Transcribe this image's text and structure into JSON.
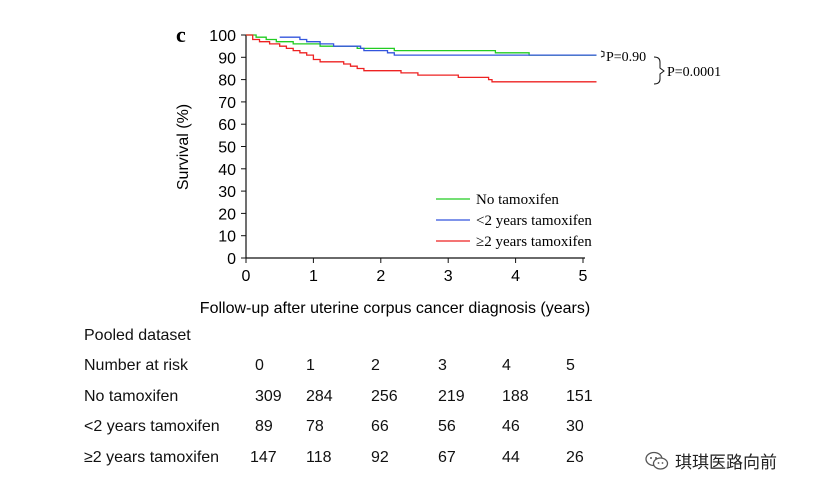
{
  "chart_data": {
    "type": "line",
    "panel_label": "c",
    "title": "",
    "xlabel": "Follow-up after uterine corpus cancer diagnosis (years)",
    "ylabel": "Survival (%)",
    "xlim": [
      0,
      5
    ],
    "ylim": [
      0,
      100
    ],
    "x_ticks": [
      "0",
      "1",
      "2",
      "3",
      "4",
      "5"
    ],
    "y_ticks": [
      "0",
      "10",
      "20",
      "30",
      "40",
      "50",
      "60",
      "70",
      "80",
      "90",
      "100"
    ],
    "legend_position": "lower-right",
    "series": [
      {
        "name": "No tamoxifen",
        "color": "#22cc22",
        "points": [
          [
            0,
            100
          ],
          [
            0.15,
            100
          ],
          [
            0.15,
            99
          ],
          [
            0.3,
            99
          ],
          [
            0.3,
            98
          ],
          [
            0.45,
            98
          ],
          [
            0.45,
            97
          ],
          [
            0.7,
            97
          ],
          [
            0.7,
            96
          ],
          [
            1.1,
            96
          ],
          [
            1.1,
            95
          ],
          [
            1.65,
            95
          ],
          [
            1.65,
            94
          ],
          [
            2.2,
            94
          ],
          [
            2.2,
            93
          ],
          [
            3.7,
            93
          ],
          [
            3.7,
            92
          ],
          [
            4.2,
            92
          ],
          [
            4.2,
            91
          ],
          [
            5.2,
            91
          ]
        ]
      },
      {
        "name": "<2 years tamoxifen",
        "color": "#3355dd",
        "points": [
          [
            0.5,
            99
          ],
          [
            0.8,
            99
          ],
          [
            0.8,
            98
          ],
          [
            0.9,
            98
          ],
          [
            0.9,
            97
          ],
          [
            1.1,
            97
          ],
          [
            1.1,
            96
          ],
          [
            1.3,
            96
          ],
          [
            1.3,
            95
          ],
          [
            1.7,
            95
          ],
          [
            1.7,
            94
          ],
          [
            1.75,
            94
          ],
          [
            1.75,
            93
          ],
          [
            2.1,
            93
          ],
          [
            2.1,
            92
          ],
          [
            2.2,
            92
          ],
          [
            2.2,
            91
          ],
          [
            5.2,
            91
          ]
        ]
      },
      {
        "name": "≥2 years tamoxifen",
        "color": "#ee2222",
        "points": [
          [
            0,
            100
          ],
          [
            0.1,
            100
          ],
          [
            0.1,
            98
          ],
          [
            0.2,
            98
          ],
          [
            0.2,
            97
          ],
          [
            0.35,
            97
          ],
          [
            0.35,
            96
          ],
          [
            0.5,
            96
          ],
          [
            0.5,
            95
          ],
          [
            0.6,
            95
          ],
          [
            0.6,
            94
          ],
          [
            0.7,
            94
          ],
          [
            0.7,
            93
          ],
          [
            0.8,
            93
          ],
          [
            0.8,
            92
          ],
          [
            0.9,
            92
          ],
          [
            0.9,
            91
          ],
          [
            1.0,
            91
          ],
          [
            1.0,
            89
          ],
          [
            1.1,
            89
          ],
          [
            1.1,
            88
          ],
          [
            1.45,
            88
          ],
          [
            1.45,
            87
          ],
          [
            1.55,
            87
          ],
          [
            1.55,
            86
          ],
          [
            1.65,
            86
          ],
          [
            1.65,
            85
          ],
          [
            1.75,
            85
          ],
          [
            1.75,
            84
          ],
          [
            2.3,
            84
          ],
          [
            2.3,
            83
          ],
          [
            2.55,
            83
          ],
          [
            2.55,
            82
          ],
          [
            3.15,
            82
          ],
          [
            3.15,
            81
          ],
          [
            3.6,
            81
          ],
          [
            3.6,
            80
          ],
          [
            3.65,
            80
          ],
          [
            3.65,
            79
          ],
          [
            5.2,
            79
          ]
        ]
      }
    ],
    "annotations": {
      "p_no_vs_lt2": "P=0.90",
      "p_overall": "P=0.0001"
    }
  },
  "risk_table": {
    "title": "Pooled dataset",
    "header_label": "Number at risk",
    "time_points": [
      "0",
      "1",
      "2",
      "3",
      "4",
      "5"
    ],
    "rows": [
      {
        "label": "No tamoxifen",
        "values": [
          "309",
          "284",
          "256",
          "219",
          "188",
          "151"
        ]
      },
      {
        "label": "<2 years tamoxifen",
        "values": [
          "89",
          "78",
          "66",
          "56",
          "46",
          "30"
        ]
      },
      {
        "label": "≥2 years tamoxifen",
        "values": [
          "147",
          "118",
          "92",
          "67",
          "44",
          "26"
        ]
      }
    ]
  },
  "watermark": {
    "text": "琪琪医路向前"
  }
}
